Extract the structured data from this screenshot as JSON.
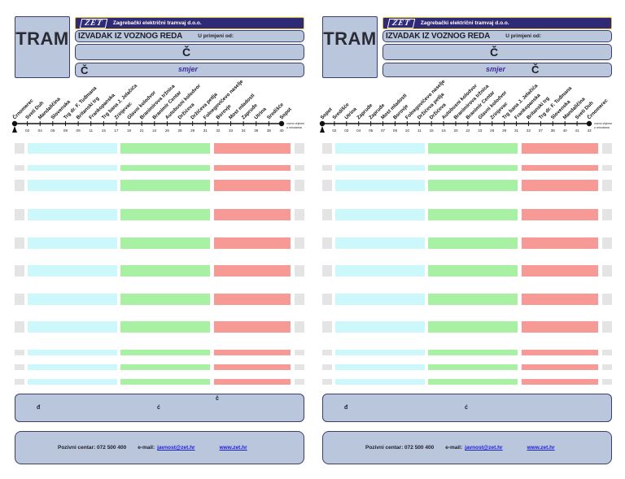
{
  "header": {
    "tram": "TRAM",
    "logo": "ZET",
    "company": "Zagrebački električni tramvaj d.o.o.",
    "title": "IZVADAK IZ VOZNOG REDA",
    "valid_from": "U primjeni od:",
    "line": "Č",
    "direction_label": "smjer",
    "from_char": "Č",
    "to_char": "Č"
  },
  "footer": {
    "call_center": "Pozivni centar: 072 500 400",
    "email_label": "e-mail:",
    "email": "javnost@zet.hr",
    "website": "www.zet.hr"
  },
  "colors": {
    "header_blue": "#b9c6dc",
    "company_bar": "#2f2a78",
    "cyan_column": "#ccf7fb",
    "green_column": "#a8f0a3",
    "red_column": "#f79a96",
    "edge_column": "#e4e4e4"
  },
  "left": {
    "stops": [
      "Črnomerec",
      "Sveti Duh",
      "Mandaličina",
      "Slovenska",
      "Trg dr. F. Tuđmana",
      "Britanski trg",
      "Frankopanska",
      "Trg bana J. Jelačića",
      "Zrinjevac",
      "Glavni kolodvor",
      "Branimirova tržnica",
      "Branimir Centar",
      "Autobusni kolodvor",
      "Držićeva",
      "Držićeva petlja",
      "Folnegovićevo naselje",
      "Borovje",
      "Most mladosti",
      "Zapruđe",
      "Utrina",
      "Središće",
      "Sopot"
    ],
    "times": [
      "02",
      "04",
      "05",
      "08",
      "09",
      "11",
      "15",
      "17",
      "19",
      "21",
      "24",
      "26",
      "28",
      "29",
      "31",
      "32",
      "33",
      "34",
      "36",
      "38",
      "40"
    ],
    "end_label": "vozno vrijeme u minutama",
    "note_a": "đ",
    "note_b": "ć",
    "note_c": "č"
  },
  "right": {
    "stops": [
      "Sopot",
      "Središće",
      "Utrina",
      "Zapruđe",
      "Zapruđe",
      "Most mladosti",
      "Borovje",
      "Folnegovićevo naselje",
      "Držićeva petlja",
      "Držićeva",
      "Autobusni kolodvor",
      "Branimirova tržnica",
      "Branimir Centar",
      "Glavni kolodvor",
      "Zrinjevac",
      "Trg bana J. Jelačića",
      "Frankopanska",
      "Britanski trg",
      "Trg dr. F. Tuđmana",
      "Slovenska",
      "Mandaličina",
      "Sveti Duh",
      "Črnomerec"
    ],
    "times": [
      "02",
      "03",
      "04",
      "05",
      "07",
      "08",
      "10",
      "11",
      "15",
      "16",
      "20",
      "22",
      "23",
      "26",
      "29",
      "31",
      "32",
      "37",
      "38",
      "40",
      "41",
      "43"
    ],
    "end_label": "vozno vrijeme u minutama",
    "note_a": "đ",
    "note_b": "ć",
    "note_c": ""
  }
}
